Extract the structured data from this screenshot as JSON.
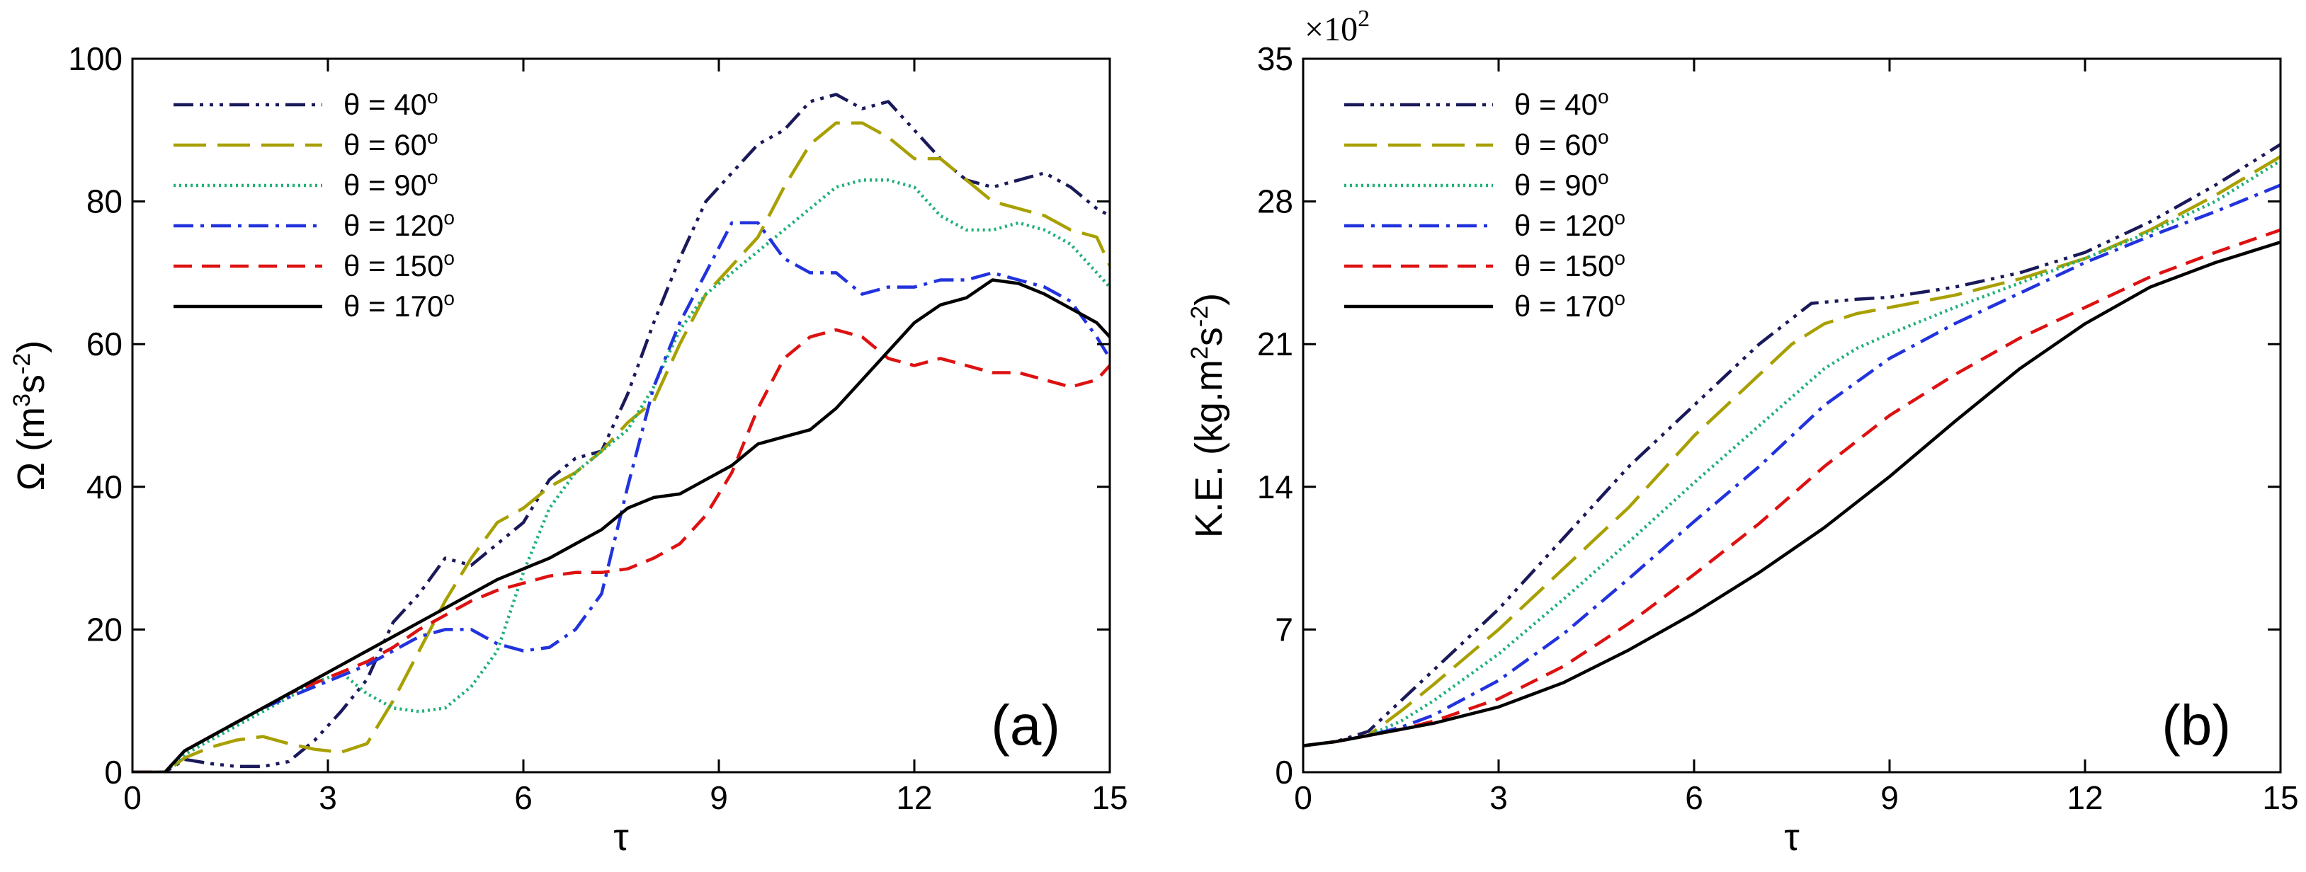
{
  "chart_data": [
    {
      "type": "line",
      "panel_label": "(a)",
      "xlabel": "τ",
      "ylabel_parts": [
        "Ω (m",
        "3",
        "s",
        "-2",
        ")"
      ],
      "xlim": [
        0,
        15
      ],
      "ylim": [
        0,
        100
      ],
      "xticks": [
        0,
        3,
        6,
        9,
        12,
        15
      ],
      "yticks": [
        0,
        20,
        40,
        60,
        80,
        100
      ],
      "legend_position": "top-left",
      "series": [
        {
          "name": "θ = 40°",
          "label_text": "θ = 40",
          "degree": "o",
          "style": "dashdotdotdot",
          "color": "#1a1a5a",
          "x": [
            0,
            0.5,
            0.8,
            1.2,
            1.6,
            2,
            2.4,
            2.8,
            3.2,
            3.6,
            4,
            4.4,
            4.8,
            5.2,
            5.6,
            6,
            6.4,
            6.8,
            7.2,
            7.6,
            8,
            8.4,
            8.8,
            9.2,
            9.6,
            10,
            10.4,
            10.8,
            11.2,
            11.6,
            12,
            12.4,
            12.8,
            13.2,
            13.6,
            14,
            14.4,
            14.8,
            15
          ],
          "y": [
            0,
            0,
            1.8,
            1.2,
            0.8,
            0.8,
            1.5,
            4.5,
            8.5,
            13,
            21,
            25,
            30,
            29,
            32,
            35,
            41,
            44,
            45,
            53,
            63,
            72,
            80,
            84,
            88,
            90,
            94,
            95,
            93,
            94,
            90,
            86,
            83,
            82,
            83,
            84,
            82,
            79,
            78
          ]
        },
        {
          "name": "θ = 60°",
          "label_text": "θ = 60",
          "degree": "o",
          "style": "longdash",
          "color": "#a8a000",
          "x": [
            0,
            0.5,
            0.8,
            1.2,
            1.6,
            2,
            2.4,
            2.8,
            3.2,
            3.6,
            4,
            4.4,
            4.8,
            5.2,
            5.6,
            6,
            6.4,
            6.8,
            7.2,
            7.6,
            8,
            8.4,
            8.8,
            9.2,
            9.6,
            10,
            10.4,
            10.8,
            11.2,
            11.6,
            12,
            12.4,
            12.8,
            13.2,
            13.6,
            14,
            14.4,
            14.8,
            15
          ],
          "y": [
            0,
            0,
            2,
            3.5,
            4.5,
            5,
            4,
            3.2,
            2.8,
            4,
            10,
            17,
            24,
            30,
            35,
            37,
            40,
            42,
            45,
            49,
            52,
            60,
            67,
            71,
            75,
            82,
            88,
            91,
            91,
            89,
            86,
            86,
            83,
            80,
            79,
            78,
            76,
            75,
            71
          ]
        },
        {
          "name": "θ = 90°",
          "label_text": "θ = 90",
          "degree": "o",
          "style": "dotted",
          "color": "#1fb078",
          "x": [
            0,
            0.5,
            0.8,
            1.2,
            1.6,
            2,
            2.4,
            2.8,
            3.2,
            3.6,
            4,
            4.4,
            4.8,
            5.2,
            5.6,
            6,
            6.4,
            6.8,
            7.2,
            7.6,
            8,
            8.4,
            8.8,
            9.2,
            9.6,
            10,
            10.4,
            10.8,
            11.2,
            11.6,
            12,
            12.4,
            12.8,
            13.2,
            13.6,
            14,
            14.4,
            14.8,
            15
          ],
          "y": [
            0,
            0,
            2.5,
            4.5,
            6.5,
            8.5,
            10.5,
            12.5,
            14,
            11,
            9,
            8.5,
            9,
            12,
            17,
            28,
            37,
            42,
            45,
            48,
            54,
            62,
            67,
            70,
            73,
            76,
            79,
            82,
            83,
            83,
            82,
            78,
            76,
            76,
            77,
            76,
            74,
            70,
            68
          ]
        },
        {
          "name": "θ = 120°",
          "label_text": "θ = 120",
          "degree": "o",
          "style": "dashdot",
          "color": "#2233dd",
          "x": [
            0,
            0.5,
            0.8,
            1.2,
            1.6,
            2,
            2.4,
            2.8,
            3.2,
            3.6,
            4,
            4.4,
            4.8,
            5.2,
            5.6,
            6,
            6.4,
            6.8,
            7.2,
            7.6,
            8,
            8.4,
            8.8,
            9.2,
            9.6,
            10,
            10.4,
            10.8,
            11.2,
            11.6,
            12,
            12.4,
            12.8,
            13.2,
            13.6,
            14,
            14.4,
            14.8,
            15
          ],
          "y": [
            0,
            0,
            3,
            5,
            7,
            9,
            10.5,
            12,
            13.5,
            15,
            17,
            19,
            20,
            20,
            18,
            17,
            17.5,
            20,
            25,
            40,
            54,
            63,
            70,
            77,
            77,
            72,
            70,
            70,
            67,
            68,
            68,
            69,
            69,
            70,
            69,
            68,
            66,
            61,
            58
          ]
        },
        {
          "name": "θ = 150°",
          "label_text": "θ = 150",
          "degree": "o",
          "style": "dashed",
          "color": "#dd1111",
          "x": [
            0,
            0.5,
            0.8,
            1.2,
            1.6,
            2,
            2.4,
            2.8,
            3.2,
            3.6,
            4,
            4.4,
            4.8,
            5.2,
            5.6,
            6,
            6.4,
            6.8,
            7.2,
            7.6,
            8,
            8.4,
            8.8,
            9.2,
            9.6,
            10,
            10.4,
            10.8,
            11.2,
            11.6,
            12,
            12.4,
            12.8,
            13.2,
            13.6,
            14,
            14.4,
            14.8,
            15
          ],
          "y": [
            0,
            0,
            3,
            5,
            7,
            9,
            11,
            12.5,
            14,
            15.5,
            17.5,
            20,
            22,
            24,
            25.5,
            26.5,
            27.5,
            28,
            28,
            28.5,
            30,
            32,
            36,
            42,
            51,
            58,
            61,
            62,
            61,
            58,
            57,
            58,
            57,
            56,
            56,
            55,
            54,
            55,
            57
          ]
        },
        {
          "name": "θ = 170°",
          "label_text": "θ = 170",
          "degree": "o",
          "style": "solid",
          "color": "#000000",
          "x": [
            0,
            0.5,
            0.8,
            1.2,
            1.6,
            2,
            2.4,
            2.8,
            3.2,
            3.6,
            4,
            4.4,
            4.8,
            5.2,
            5.6,
            6,
            6.4,
            6.8,
            7.2,
            7.6,
            8,
            8.4,
            8.8,
            9.2,
            9.6,
            10,
            10.4,
            10.8,
            11.2,
            11.6,
            12,
            12.4,
            12.8,
            13.2,
            13.6,
            14,
            14.4,
            14.8,
            15
          ],
          "y": [
            0,
            0,
            3,
            5,
            7,
            9,
            11,
            13,
            15,
            17,
            19,
            21,
            23,
            25,
            27,
            28.5,
            30,
            32,
            34,
            37,
            38.5,
            39,
            41,
            43,
            46,
            47,
            48,
            51,
            55,
            59,
            63,
            65.5,
            66.5,
            69,
            68.5,
            67,
            65,
            63,
            61
          ]
        }
      ]
    },
    {
      "type": "line",
      "panel_label": "(b)",
      "xlabel": "τ",
      "ylabel_parts": [
        "K.E. (kg.m",
        "2",
        "s",
        "-2",
        ")"
      ],
      "scale_label": "×10",
      "scale_exponent": "2",
      "xlim": [
        0,
        15
      ],
      "ylim": [
        0,
        35
      ],
      "xticks": [
        0,
        3,
        6,
        9,
        12,
        15
      ],
      "yticks": [
        0,
        7,
        14,
        21,
        28,
        35
      ],
      "legend_position": "top-left",
      "series": [
        {
          "name": "θ = 40°",
          "label_text": "θ = 40",
          "degree": "o",
          "style": "dashdotdotdot",
          "color": "#1a1a5a",
          "x": [
            0,
            0.5,
            1,
            1.5,
            2,
            3,
            4,
            5,
            6,
            7,
            7.8,
            8.5,
            9,
            10,
            11,
            12,
            13,
            14,
            15
          ],
          "y": [
            1.3,
            1.5,
            2,
            3.5,
            5,
            8,
            11.5,
            15,
            18,
            21,
            23,
            23.2,
            23.3,
            23.8,
            24.5,
            25.5,
            27,
            28.8,
            30.8
          ]
        },
        {
          "name": "θ = 60°",
          "label_text": "θ = 60",
          "degree": "o",
          "style": "longdash",
          "color": "#a8a000",
          "x": [
            0,
            0.5,
            1,
            1.5,
            2,
            3,
            4,
            5,
            6,
            7,
            7.5,
            8,
            8.5,
            9,
            10,
            11,
            12,
            13,
            14,
            15
          ],
          "y": [
            1.3,
            1.5,
            1.8,
            3,
            4.3,
            7,
            10,
            13,
            16.5,
            19.5,
            21,
            22,
            22.5,
            22.8,
            23.4,
            24.2,
            25.2,
            26.6,
            28.3,
            30.2
          ]
        },
        {
          "name": "θ = 90°",
          "label_text": "θ = 90",
          "degree": "o",
          "style": "dotted",
          "color": "#1fb078",
          "x": [
            0,
            0.5,
            1,
            1.5,
            2,
            3,
            4,
            5,
            6,
            7,
            8,
            8.5,
            9,
            10,
            11,
            12,
            13,
            14,
            15
          ],
          "y": [
            1.3,
            1.5,
            1.8,
            2.5,
            3.5,
            5.8,
            8.5,
            11.3,
            14.2,
            17,
            19.8,
            20.8,
            21.5,
            22.8,
            24,
            25.2,
            26.5,
            28,
            30
          ]
        },
        {
          "name": "θ = 120°",
          "label_text": "θ = 120",
          "degree": "o",
          "style": "dashdot",
          "color": "#2233dd",
          "x": [
            0,
            0.5,
            1,
            1.5,
            2,
            3,
            4,
            5,
            6,
            7,
            8,
            9,
            10,
            11,
            12,
            13,
            14,
            15
          ],
          "y": [
            1.3,
            1.5,
            1.8,
            2.2,
            2.8,
            4.5,
            6.8,
            9.5,
            12.3,
            15,
            18,
            20.3,
            22,
            23.5,
            25,
            26.3,
            27.5,
            28.8
          ]
        },
        {
          "name": "θ = 150°",
          "label_text": "θ = 150",
          "degree": "o",
          "style": "dashed",
          "color": "#dd1111",
          "x": [
            0,
            0.5,
            1,
            1.5,
            2,
            3,
            4,
            5,
            6,
            7,
            8,
            9,
            10,
            11,
            12,
            13,
            14,
            15
          ],
          "y": [
            1.3,
            1.5,
            1.8,
            2.1,
            2.5,
            3.6,
            5.2,
            7.3,
            9.7,
            12.2,
            15,
            17.5,
            19.5,
            21.3,
            22.8,
            24.3,
            25.5,
            26.6
          ]
        },
        {
          "name": "θ = 170°",
          "label_text": "θ = 170",
          "degree": "o",
          "style": "solid",
          "color": "#000000",
          "x": [
            0,
            0.5,
            1,
            1.5,
            2,
            3,
            4,
            5,
            6,
            7,
            8,
            9,
            10,
            11,
            12,
            13,
            14,
            15
          ],
          "y": [
            1.3,
            1.5,
            1.8,
            2.1,
            2.4,
            3.2,
            4.4,
            6,
            7.8,
            9.8,
            12,
            14.5,
            17.2,
            19.8,
            22,
            23.8,
            25,
            26
          ]
        }
      ]
    }
  ]
}
